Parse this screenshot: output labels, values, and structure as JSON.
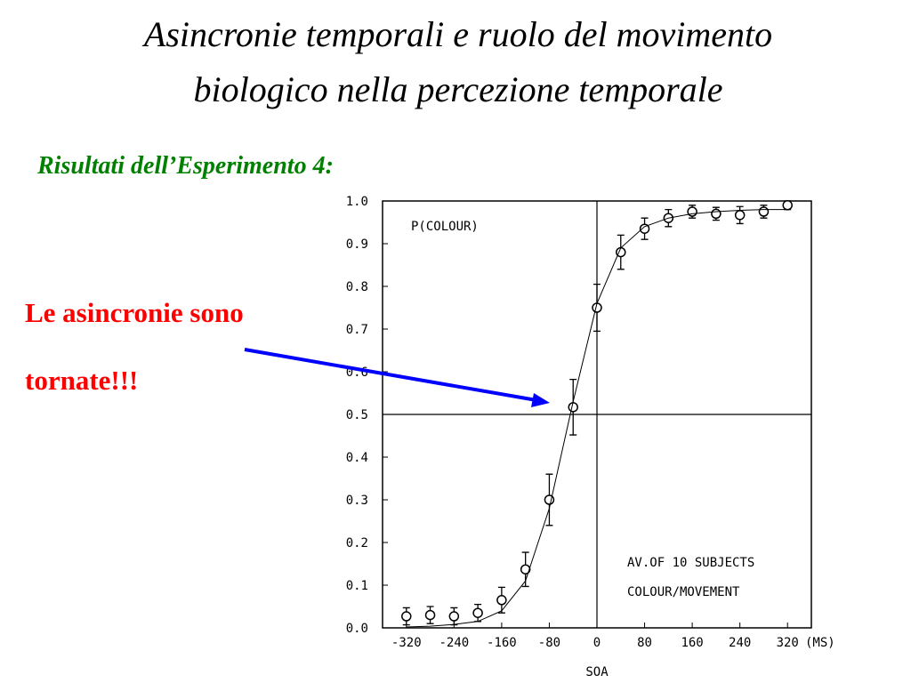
{
  "slide": {
    "title_lines": [
      "Asincronie temporali e ruolo del movimento",
      "biologico nella percezione temporale"
    ],
    "subtitle": "Risultati dell’Esperimento 4:",
    "note_lines": [
      "Le asincronie sono",
      "tornate!!!"
    ]
  },
  "chart_data": {
    "type": "scatter",
    "annotations": [
      "P(COLOUR)",
      "AV.OF 10 SUBJECTS",
      "COLOUR/MOVEMENT"
    ],
    "x_label": "SOA",
    "x_unit": "(MS)",
    "x": [
      -320,
      -280,
      -240,
      -200,
      -160,
      -120,
      -80,
      -40,
      0,
      40,
      80,
      120,
      160,
      200,
      240,
      280,
      320
    ],
    "series": [
      {
        "color": "#000000",
        "marker": "circle",
        "values": [
          0.027,
          0.03,
          0.027,
          0.035,
          0.065,
          0.137,
          0.3,
          0.517,
          0.75,
          0.88,
          0.935,
          0.96,
          0.975,
          0.97,
          0.967,
          0.975,
          0.99
        ],
        "errors": [
          0.02,
          0.02,
          0.02,
          0.02,
          0.03,
          0.04,
          0.06,
          0.065,
          0.055,
          0.04,
          0.025,
          0.02,
          0.015,
          0.015,
          0.02,
          0.015,
          0.01
        ]
      },
      {
        "color": "#000000",
        "marker": "line",
        "values": [
          0.002,
          0.004,
          0.008,
          0.015,
          0.04,
          0.11,
          0.28,
          0.53,
          0.76,
          0.89,
          0.94,
          0.96,
          0.97,
          0.975,
          0.978,
          0.98,
          0.98
        ]
      }
    ],
    "xlim": [
      -360,
      360
    ],
    "ylim": [
      0,
      1
    ],
    "xticks": [
      -320,
      -240,
      -160,
      -80,
      0,
      80,
      160,
      240,
      320
    ],
    "yticks": [
      {
        "value": 0,
        "label": "0.0"
      },
      0.1,
      0.2,
      0.3,
      0.4,
      0.5,
      0.6,
      0.7,
      0.8,
      0.9,
      {
        "value": 1,
        "label": "1.0"
      }
    ],
    "hlines": [
      0.5
    ],
    "vlines": [
      0
    ]
  }
}
